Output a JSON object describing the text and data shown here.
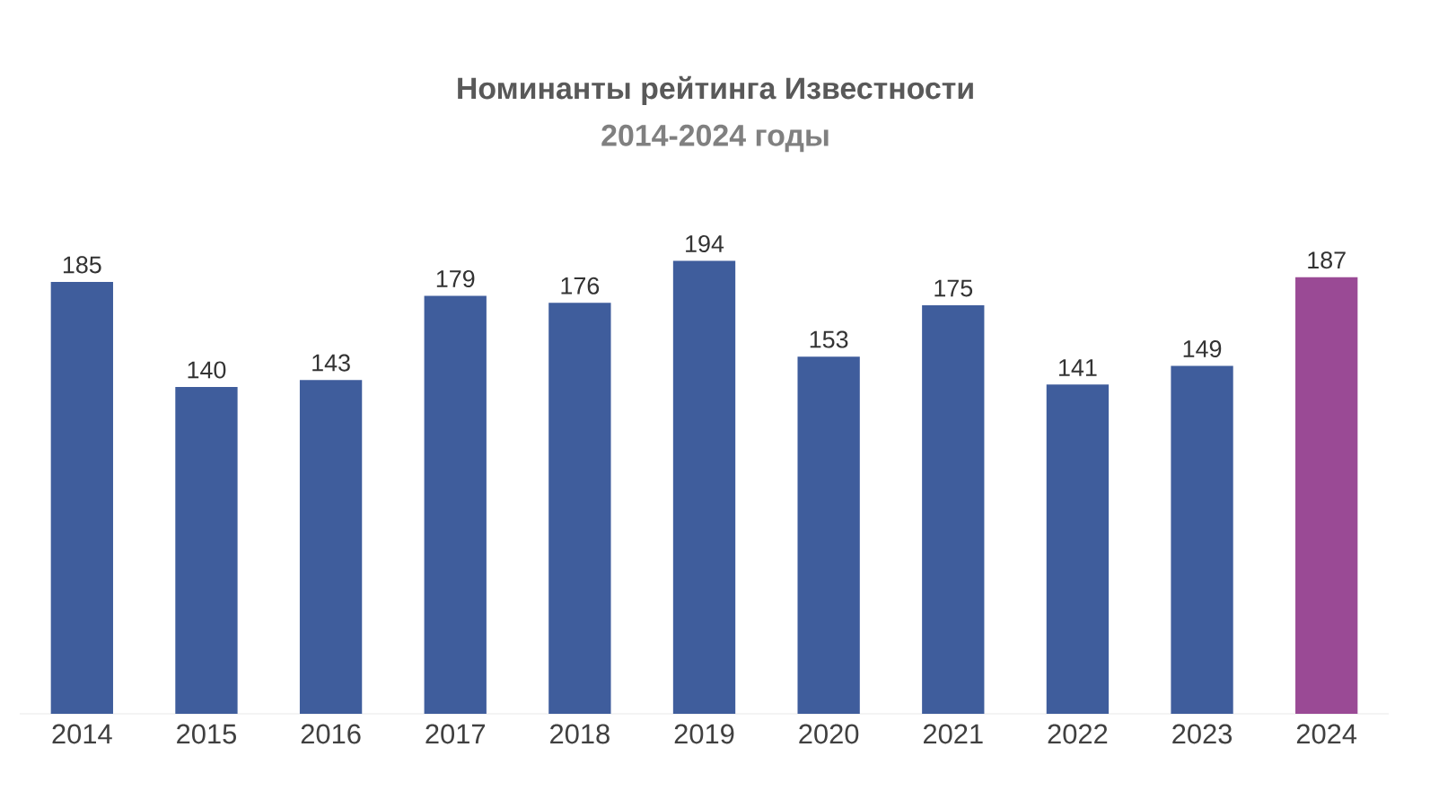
{
  "chart_data": {
    "type": "bar",
    "title": "Номинанты рейтинга Известности",
    "subtitle": "2014-2024 годы",
    "categories": [
      "2014",
      "2015",
      "2016",
      "2017",
      "2018",
      "2019",
      "2020",
      "2021",
      "2022",
      "2023",
      "2024"
    ],
    "values": [
      185,
      140,
      143,
      179,
      176,
      194,
      153,
      175,
      141,
      149,
      187
    ],
    "colors": [
      "#3f5d9c",
      "#3f5d9c",
      "#3f5d9c",
      "#3f5d9c",
      "#3f5d9c",
      "#3f5d9c",
      "#3f5d9c",
      "#3f5d9c",
      "#3f5d9c",
      "#3f5d9c",
      "#9a4a95"
    ],
    "data_labels": true
  }
}
